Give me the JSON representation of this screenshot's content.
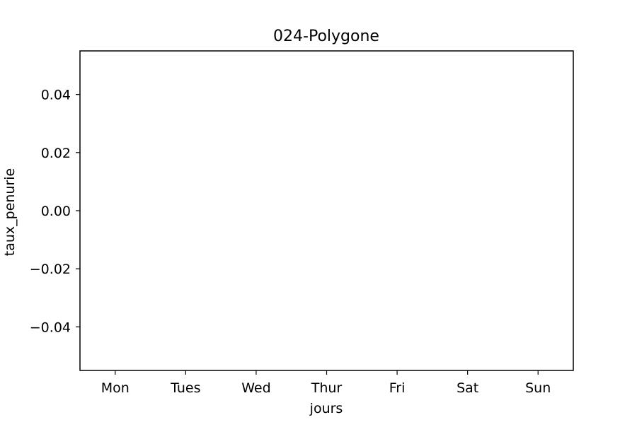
{
  "chart_data": {
    "type": "bar",
    "title": "024-Polygone",
    "xlabel": "jours",
    "ylabel": "taux_penurie",
    "categories": [
      "Mon",
      "Tues",
      "Wed",
      "Thur",
      "Fri",
      "Sat",
      "Sun"
    ],
    "series": [
      {
        "values": [
          0,
          0,
          0,
          0,
          0,
          0,
          0
        ]
      }
    ],
    "ylim": [
      -0.055,
      0.055
    ],
    "yticks": [
      0.04,
      0.02,
      0.0,
      -0.02,
      -0.04
    ],
    "ytick_labels": [
      "0.04",
      "0.02",
      "0.00",
      "−0.02",
      "−0.04"
    ],
    "grid": false,
    "legend": "none",
    "colors": {
      "axis": "#000000",
      "background": "#ffffff"
    }
  }
}
